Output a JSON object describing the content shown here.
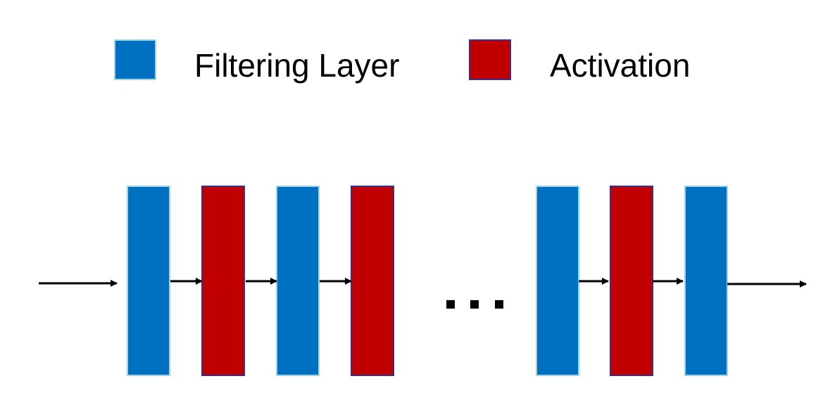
{
  "legend": {
    "filter_label": "Filtering Layer",
    "activation_label": "Activation"
  },
  "colors": {
    "filter": "#0070c0",
    "activation": "#c00000",
    "arrow": "#000000"
  },
  "chain": {
    "layers_before_gap": [
      "filter",
      "activation",
      "filter",
      "activation"
    ],
    "layers_after_gap": [
      "filter",
      "activation",
      "filter"
    ],
    "has_input_arrow": true,
    "has_output_arrow": true,
    "ellipsis_dot_count": 3
  }
}
